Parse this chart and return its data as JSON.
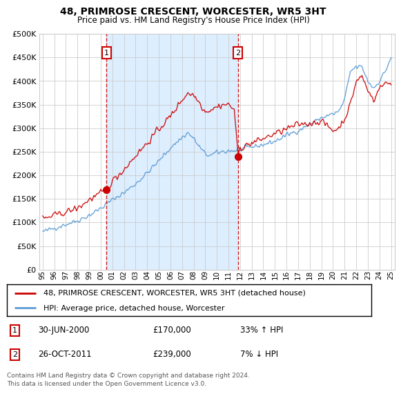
{
  "title": "48, PRIMROSE CRESCENT, WORCESTER, WR5 3HT",
  "subtitle": "Price paid vs. HM Land Registry's House Price Index (HPI)",
  "legend_entry1": "48, PRIMROSE CRESCENT, WORCESTER, WR5 3HT (detached house)",
  "legend_entry2": "HPI: Average price, detached house, Worcester",
  "annotation1_label": "1",
  "annotation1_date": "30-JUN-2000",
  "annotation1_price": "£170,000",
  "annotation1_hpi": "33% ↑ HPI",
  "annotation2_label": "2",
  "annotation2_date": "26-OCT-2011",
  "annotation2_price": "£239,000",
  "annotation2_hpi": "7% ↓ HPI",
  "footer": "Contains HM Land Registry data © Crown copyright and database right 2024.\nThis data is licensed under the Open Government Licence v3.0.",
  "hpi_color": "#5b9bd5",
  "price_color": "#cc0000",
  "shade_color": "#ddeeff",
  "marker1_x": 2000.5,
  "marker1_y": 170000,
  "marker2_x": 2011.82,
  "marker2_y": 239000,
  "vline1_x": 2000.5,
  "vline2_x": 2011.82,
  "ylim": [
    0,
    500000
  ],
  "xlim_start": 1994.7,
  "xlim_end": 2025.3,
  "yticks": [
    0,
    50000,
    100000,
    150000,
    200000,
    250000,
    300000,
    350000,
    400000,
    450000,
    500000
  ],
  "xtick_years": [
    1995,
    1996,
    1997,
    1998,
    1999,
    2000,
    2001,
    2002,
    2003,
    2004,
    2005,
    2006,
    2007,
    2008,
    2009,
    2010,
    2011,
    2012,
    2013,
    2014,
    2015,
    2016,
    2017,
    2018,
    2019,
    2020,
    2021,
    2022,
    2023,
    2024,
    2025
  ],
  "background_color": "#ffffff",
  "grid_color": "#cccccc"
}
